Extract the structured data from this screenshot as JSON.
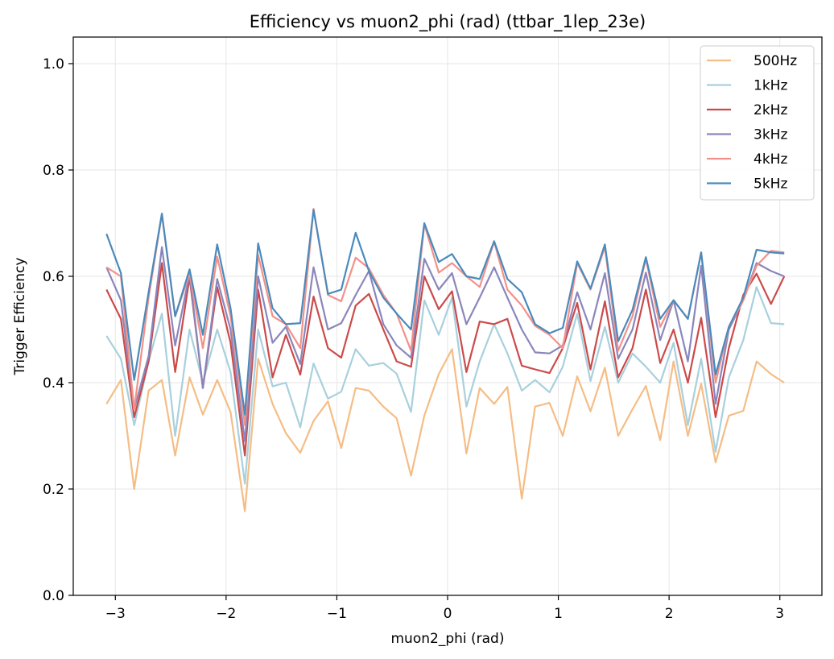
{
  "chart_data": {
    "type": "line",
    "title": "Efficiency vs muon2_phi (rad) (ttbar_1lep_23e)",
    "xlabel": "muon2_phi (rad)",
    "ylabel": "Trigger Efficiency",
    "xlim": [
      -3.38,
      3.38
    ],
    "ylim": [
      0.0,
      1.05
    ],
    "xticks": [
      -3,
      -2,
      -1,
      0,
      1,
      2,
      3
    ],
    "xtick_labels": [
      "−3",
      "−2",
      "−1",
      "0",
      "1",
      "2",
      "3"
    ],
    "yticks": [
      0.0,
      0.2,
      0.4,
      0.6,
      0.8,
      1.0
    ],
    "ytick_labels": [
      "0.0",
      "0.2",
      "0.4",
      "0.6",
      "0.8",
      "1.0"
    ],
    "grid": true,
    "legend_position": "top-right",
    "x": [
      -3.08,
      -2.95,
      -2.83,
      -2.7,
      -2.58,
      -2.46,
      -2.33,
      -2.21,
      -2.08,
      -1.96,
      -1.83,
      -1.71,
      -1.58,
      -1.46,
      -1.33,
      -1.21,
      -1.08,
      -0.96,
      -0.83,
      -0.71,
      -0.58,
      -0.46,
      -0.33,
      -0.21,
      -0.08,
      0.04,
      0.17,
      0.29,
      0.42,
      0.54,
      0.67,
      0.79,
      0.92,
      1.04,
      1.17,
      1.29,
      1.42,
      1.54,
      1.67,
      1.79,
      1.92,
      2.04,
      2.17,
      2.29,
      2.42,
      2.54,
      2.67,
      2.79,
      2.92,
      3.04
    ],
    "series": [
      {
        "name": "500Hz",
        "color": "#f5bd85",
        "values": [
          0.36,
          0.405,
          0.2,
          0.385,
          0.405,
          0.263,
          0.41,
          0.34,
          0.405,
          0.345,
          0.158,
          0.445,
          0.36,
          0.305,
          0.268,
          0.328,
          0.365,
          0.277,
          0.39,
          0.385,
          0.355,
          0.333,
          0.225,
          0.338,
          0.416,
          0.463,
          0.267,
          0.39,
          0.36,
          0.392,
          0.182,
          0.355,
          0.362,
          0.3,
          0.412,
          0.346,
          0.428,
          0.3,
          0.35,
          0.394,
          0.292,
          0.44,
          0.3,
          0.398,
          0.25,
          0.338,
          0.347,
          0.44,
          0.416,
          0.4
        ]
      },
      {
        "name": "1kHz",
        "color": "#a8d0dd",
        "values": [
          0.488,
          0.445,
          0.32,
          0.44,
          0.53,
          0.3,
          0.5,
          0.4,
          0.5,
          0.42,
          0.21,
          0.5,
          0.393,
          0.4,
          0.316,
          0.436,
          0.37,
          0.383,
          0.463,
          0.432,
          0.437,
          0.417,
          0.345,
          0.555,
          0.49,
          0.56,
          0.355,
          0.44,
          0.51,
          0.455,
          0.385,
          0.405,
          0.382,
          0.43,
          0.53,
          0.403,
          0.505,
          0.4,
          0.455,
          0.43,
          0.4,
          0.475,
          0.32,
          0.445,
          0.27,
          0.41,
          0.48,
          0.58,
          0.512,
          0.51
        ]
      },
      {
        "name": "2kHz",
        "color": "#cc4a4a",
        "values": [
          0.575,
          0.52,
          0.335,
          0.44,
          0.625,
          0.42,
          0.598,
          0.39,
          0.58,
          0.475,
          0.263,
          0.575,
          0.41,
          0.49,
          0.415,
          0.562,
          0.465,
          0.447,
          0.545,
          0.567,
          0.5,
          0.44,
          0.43,
          0.6,
          0.538,
          0.572,
          0.42,
          0.515,
          0.51,
          0.52,
          0.432,
          0.425,
          0.418,
          0.465,
          0.55,
          0.425,
          0.553,
          0.41,
          0.465,
          0.575,
          0.437,
          0.5,
          0.4,
          0.522,
          0.335,
          0.465,
          0.565,
          0.605,
          0.548,
          0.6
        ]
      },
      {
        "name": "3kHz",
        "color": "#8a86bd",
        "values": [
          0.617,
          0.555,
          0.35,
          0.45,
          0.655,
          0.47,
          0.605,
          0.39,
          0.595,
          0.5,
          0.29,
          0.6,
          0.475,
          0.505,
          0.435,
          0.617,
          0.5,
          0.512,
          0.565,
          0.61,
          0.51,
          0.47,
          0.447,
          0.633,
          0.575,
          0.606,
          0.51,
          0.56,
          0.617,
          0.56,
          0.5,
          0.457,
          0.455,
          0.47,
          0.57,
          0.5,
          0.606,
          0.445,
          0.5,
          0.607,
          0.48,
          0.555,
          0.44,
          0.62,
          0.36,
          0.5,
          0.555,
          0.625,
          0.61,
          0.6
        ]
      },
      {
        "name": "4kHz",
        "color": "#f39189",
        "values": [
          0.617,
          0.6,
          0.35,
          0.56,
          0.717,
          0.525,
          0.605,
          0.465,
          0.637,
          0.525,
          0.32,
          0.64,
          0.525,
          0.51,
          0.465,
          0.727,
          0.565,
          0.553,
          0.635,
          0.615,
          0.565,
          0.53,
          0.46,
          0.698,
          0.607,
          0.625,
          0.6,
          0.58,
          0.665,
          0.575,
          0.545,
          0.507,
          0.49,
          0.465,
          0.625,
          0.575,
          0.655,
          0.46,
          0.525,
          0.633,
          0.505,
          0.555,
          0.52,
          0.645,
          0.4,
          0.505,
          0.555,
          0.62,
          0.648,
          0.645
        ]
      },
      {
        "name": "5kHz",
        "color": "#4a8abc",
        "values": [
          0.68,
          0.606,
          0.405,
          0.57,
          0.718,
          0.525,
          0.613,
          0.49,
          0.66,
          0.54,
          0.34,
          0.662,
          0.54,
          0.51,
          0.512,
          0.725,
          0.567,
          0.575,
          0.682,
          0.61,
          0.56,
          0.53,
          0.5,
          0.7,
          0.627,
          0.642,
          0.6,
          0.595,
          0.666,
          0.595,
          0.57,
          0.51,
          0.493,
          0.503,
          0.628,
          0.577,
          0.66,
          0.478,
          0.537,
          0.636,
          0.52,
          0.555,
          0.52,
          0.645,
          0.415,
          0.505,
          0.56,
          0.65,
          0.645,
          0.643
        ]
      }
    ]
  }
}
